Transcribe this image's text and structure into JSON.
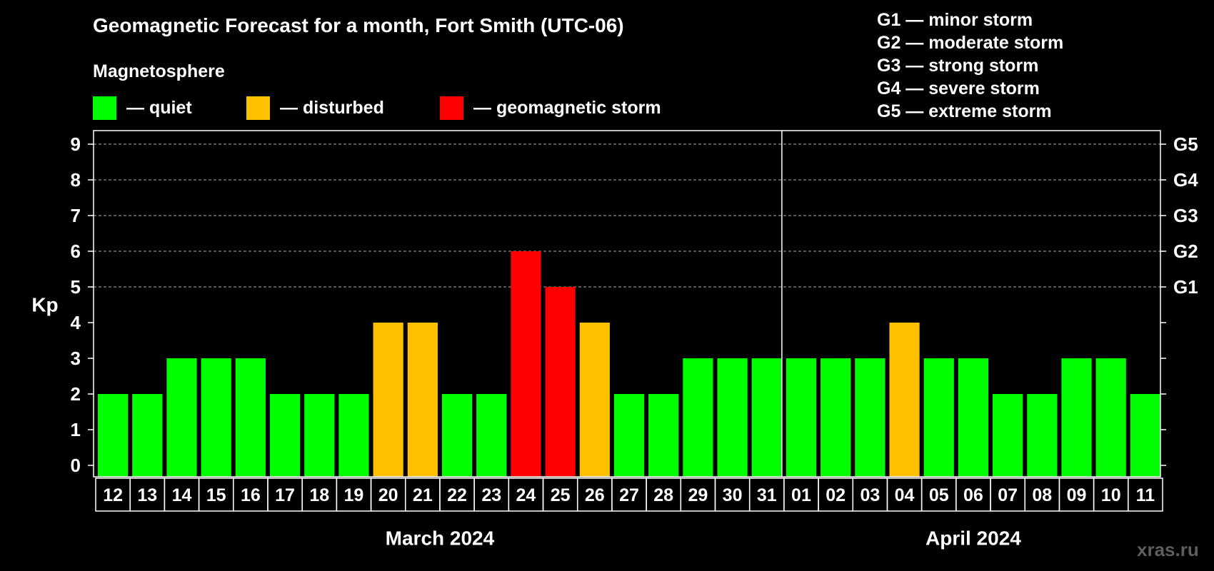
{
  "chart_data": {
    "type": "bar",
    "title": "Geomagnetic Forecast for a month, Fort Smith (UTC-06)",
    "subtitle": "Magnetosphere",
    "ylabel": "Kp",
    "ylim": [
      0,
      9
    ],
    "yticks": [
      "0",
      "1",
      "2",
      "3",
      "4",
      "5",
      "6",
      "7",
      "8",
      "9"
    ],
    "right_axis_labels": [
      {
        "kp": 5,
        "label": "G1"
      },
      {
        "kp": 6,
        "label": "G2"
      },
      {
        "kp": 7,
        "label": "G3"
      },
      {
        "kp": 8,
        "label": "G4"
      },
      {
        "kp": 9,
        "label": "G5"
      }
    ],
    "categories": [
      "12",
      "13",
      "14",
      "15",
      "16",
      "17",
      "18",
      "19",
      "20",
      "21",
      "22",
      "23",
      "24",
      "25",
      "26",
      "27",
      "28",
      "29",
      "30",
      "31",
      "01",
      "02",
      "03",
      "04",
      "05",
      "06",
      "07",
      "08",
      "09",
      "10",
      "11"
    ],
    "values": [
      2,
      2,
      3,
      3,
      3,
      2,
      2,
      2,
      4,
      4,
      2,
      2,
      6,
      5,
      4,
      2,
      2,
      3,
      3,
      3,
      3,
      3,
      3,
      4,
      3,
      3,
      2,
      2,
      3,
      3,
      2
    ],
    "months": [
      {
        "label": "March 2024",
        "first_index": 0,
        "last_index": 19
      },
      {
        "label": "April 2024",
        "first_index": 20,
        "last_index": 30
      }
    ],
    "grid_dashed_at": [
      5,
      6,
      7,
      8,
      9
    ],
    "legend": [
      {
        "label": "— quiet",
        "color": "#00ff00"
      },
      {
        "label": "— disturbed",
        "color": "#ffc000"
      },
      {
        "label": "— geomagnetic storm",
        "color": "#ff0000"
      }
    ],
    "g_scale": [
      "G1 — minor storm",
      "G2 — moderate storm",
      "G3 — strong storm",
      "G4 — severe storm",
      "G5 — extreme storm"
    ]
  },
  "colors": {
    "quiet": "#00ff00",
    "disturbed": "#ffc000",
    "storm": "#ff0000",
    "background": "#000000",
    "axis": "#ffffff",
    "grid": "#8c8c8c",
    "watermark": "#5e5e5e"
  },
  "watermark": "xras.ru"
}
